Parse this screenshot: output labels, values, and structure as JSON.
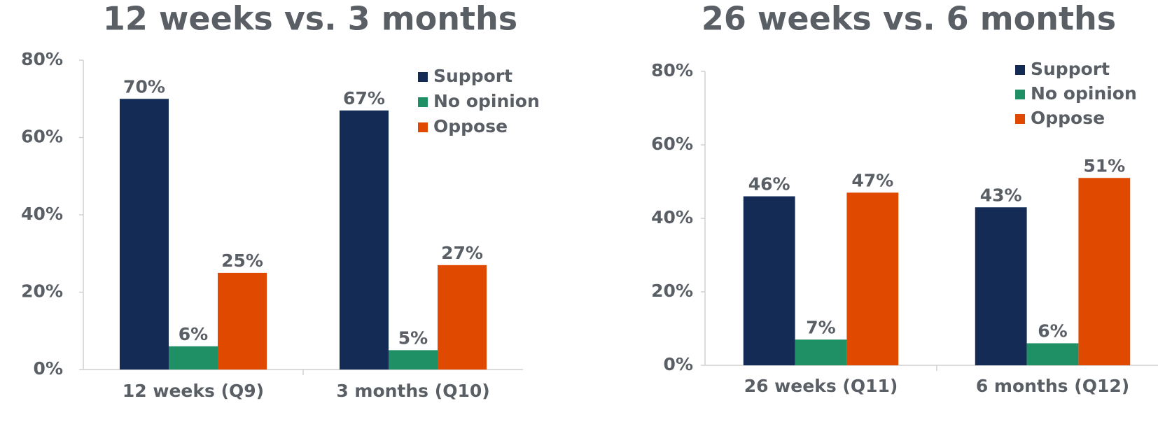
{
  "chart_data": [
    {
      "type": "bar",
      "title": "12 weeks vs. 3 months",
      "categories": [
        "12 weeks (Q9)",
        "3 months (Q10)"
      ],
      "series": [
        {
          "name": "Support",
          "color": "#142c55",
          "values": [
            70,
            67
          ],
          "value_labels": [
            "70%",
            "67%"
          ]
        },
        {
          "name": "No opinion",
          "color": "#1f8f65",
          "values": [
            6,
            5
          ],
          "value_labels": [
            "6%",
            "5%"
          ]
        },
        {
          "name": "Oppose",
          "color": "#e04a00",
          "values": [
            25,
            27
          ],
          "value_labels": [
            "25%",
            "27%"
          ]
        }
      ],
      "ylim": [
        0,
        80
      ],
      "yticks": [
        {
          "value": 0,
          "label": "0%"
        },
        {
          "value": 20,
          "label": "20%"
        },
        {
          "value": 40,
          "label": "40%"
        },
        {
          "value": 60,
          "label": "60%"
        },
        {
          "value": 80,
          "label": "80%"
        }
      ],
      "legend": "upper right"
    },
    {
      "type": "bar",
      "title": "26 weeks vs. 6 months",
      "categories": [
        "26 weeks (Q11)",
        "6 months (Q12)"
      ],
      "series": [
        {
          "name": "Support",
          "color": "#142c55",
          "values": [
            46,
            43
          ],
          "value_labels": [
            "46%",
            "43%"
          ]
        },
        {
          "name": "No opinion",
          "color": "#1f8f65",
          "values": [
            7,
            6
          ],
          "value_labels": [
            "7%",
            "6%"
          ]
        },
        {
          "name": "Oppose",
          "color": "#e04a00",
          "values": [
            47,
            51
          ],
          "value_labels": [
            "47%",
            "51%"
          ]
        }
      ],
      "ylim": [
        0,
        80
      ],
      "yticks": [
        {
          "value": 0,
          "label": "0%"
        },
        {
          "value": 20,
          "label": "20%"
        },
        {
          "value": 40,
          "label": "40%"
        },
        {
          "value": 60,
          "label": "60%"
        },
        {
          "value": 80,
          "label": "80%"
        }
      ],
      "legend": "upper right"
    }
  ]
}
